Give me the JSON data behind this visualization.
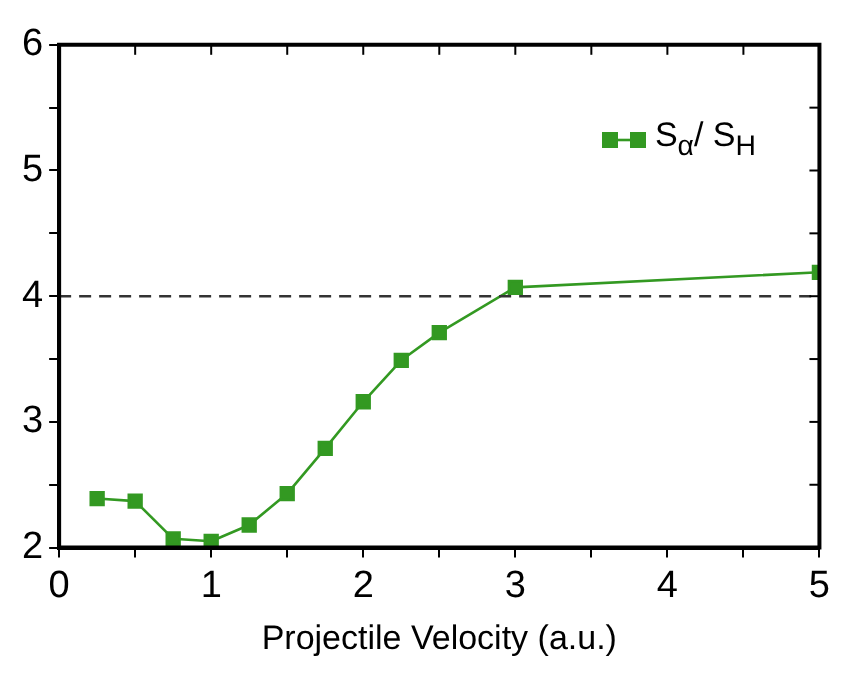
{
  "chart_data": {
    "type": "line",
    "xlabel": "Projectile Velocity (a.u.)",
    "x": [
      0.25,
      0.5,
      0.75,
      1.0,
      1.25,
      1.5,
      1.75,
      2.0,
      2.25,
      2.5,
      3.0,
      5.0
    ],
    "series": [
      {
        "name": "S$_{α}$/ S$_{H}$",
        "color": "#339922",
        "values": [
          2.39,
          2.37,
          2.07,
          2.05,
          2.18,
          2.43,
          2.79,
          3.16,
          3.49,
          3.71,
          4.07,
          4.19
        ]
      }
    ],
    "xlim": [
      0,
      5
    ],
    "xticks": [
      0,
      {
        "value": 0.5,
        "label": null
      },
      1,
      {
        "value": 1.5,
        "label": null
      },
      2,
      {
        "value": 2.5,
        "label": null
      },
      3,
      {
        "value": 3.5,
        "label": null
      },
      4,
      {
        "value": 4.5,
        "label": null
      },
      5
    ],
    "ylim": [
      2,
      6
    ],
    "yticks": [
      2,
      {
        "value": 2.5,
        "label": null
      },
      3,
      {
        "value": 3.5,
        "label": null
      },
      4,
      {
        "value": 4.5,
        "label": null
      },
      5,
      {
        "value": 5.5,
        "label": null
      },
      6
    ],
    "ref_lines": [
      {
        "axis": "y",
        "value": 4,
        "color": "#333333",
        "line_style": "dashed"
      }
    ],
    "grid": false,
    "legend": "top right",
    "marker": "square",
    "line_style": "solid"
  }
}
